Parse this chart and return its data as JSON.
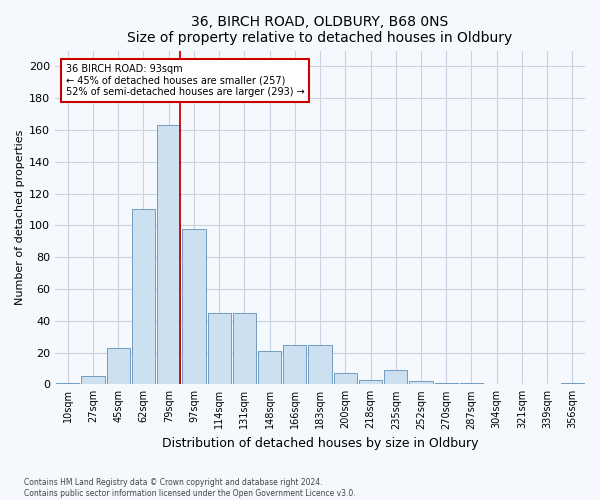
{
  "title1": "36, BIRCH ROAD, OLDBURY, B68 0NS",
  "title2": "Size of property relative to detached houses in Oldbury",
  "xlabel": "Distribution of detached houses by size in Oldbury",
  "ylabel": "Number of detached properties",
  "categories": [
    "10sqm",
    "27sqm",
    "45sqm",
    "62sqm",
    "79sqm",
    "97sqm",
    "114sqm",
    "131sqm",
    "148sqm",
    "166sqm",
    "183sqm",
    "200sqm",
    "218sqm",
    "235sqm",
    "252sqm",
    "270sqm",
    "287sqm",
    "304sqm",
    "321sqm",
    "339sqm",
    "356sqm"
  ],
  "values": [
    1,
    5,
    23,
    110,
    163,
    98,
    45,
    45,
    21,
    25,
    25,
    7,
    3,
    9,
    2,
    1,
    1,
    0,
    0,
    0,
    1
  ],
  "bar_color": "#cce0f0",
  "bar_edge_color": "#6090b8",
  "vline_index": 4,
  "vline_color": "#cc0000",
  "annotation_line1": "36 BIRCH ROAD: 93sqm",
  "annotation_line2": "← 45% of detached houses are smaller (257)",
  "annotation_line3": "52% of semi-detached houses are larger (293) →",
  "annotation_box_color": "white",
  "annotation_box_edge": "#cc0000",
  "ylim": [
    0,
    210
  ],
  "yticks": [
    0,
    20,
    40,
    60,
    80,
    100,
    120,
    140,
    160,
    180,
    200
  ],
  "footnote1": "Contains HM Land Registry data © Crown copyright and database right 2024.",
  "footnote2": "Contains public sector information licensed under the Open Government Licence v3.0.",
  "bg_color": "#f5f8fd",
  "plot_bg_color": "#f5f8fd",
  "grid_color": "#c8d4e4",
  "title_fontsize": 10,
  "axis_label_fontsize": 8,
  "tick_fontsize": 7
}
